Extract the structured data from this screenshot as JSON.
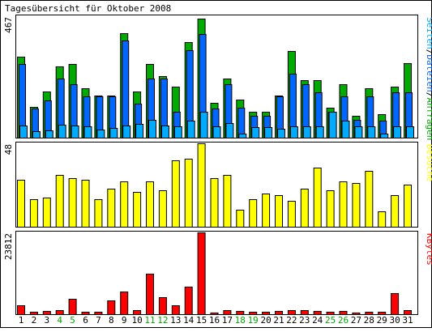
{
  "title": "Tagesübersicht für Oktober 2008",
  "colors": {
    "background": "#ffffff",
    "panel_border": "#000000",
    "hits": "#00aa00",
    "files": "#0066ff",
    "pages": "#00aaff",
    "visits": "#ffff00",
    "kbytes": "#ff0000",
    "weekday_label": "#000000",
    "weekend_label": "#00aa00"
  },
  "chart_data": [
    {
      "type": "bar",
      "panel": "requests",
      "ymax_label": "467",
      "ylim": [
        0,
        467
      ],
      "legend": [
        {
          "text": "Seiten",
          "color": "#00aaff"
        },
        {
          "text": "/",
          "color": "#000000"
        },
        {
          "text": "Dateien",
          "color": "#0066ff"
        },
        {
          "text": "/",
          "color": "#000000"
        },
        {
          "text": "Anfragen",
          "color": "#00aa00"
        }
      ],
      "categories": [
        "1",
        "2",
        "3",
        "4",
        "5",
        "6",
        "7",
        "8",
        "9",
        "10",
        "11",
        "12",
        "13",
        "14",
        "15",
        "16",
        "17",
        "18",
        "19",
        "20",
        "21",
        "22",
        "23",
        "24",
        "25",
        "26",
        "27",
        "28",
        "29",
        "30",
        "31"
      ],
      "series": [
        {
          "name": "Anfragen",
          "color": "#00aa00",
          "values": [
            311,
            117,
            177,
            273,
            282,
            189,
            163,
            163,
            402,
            177,
            282,
            237,
            195,
            367,
            458,
            135,
            228,
            145,
            100,
            100,
            163,
            332,
            220,
            222,
            115,
            205,
            85,
            190,
            90,
            195,
            285
          ]
        },
        {
          "name": "Dateien",
          "color": "#0066ff",
          "values": [
            283,
            112,
            142,
            228,
            205,
            159,
            159,
            159,
            375,
            132,
            228,
            228,
            101,
            337,
            397,
            112,
            205,
            115,
            83,
            83,
            159,
            245,
            205,
            175,
            99,
            159,
            70,
            159,
            64,
            175,
            175
          ]
        },
        {
          "name": "Seiten",
          "color": "#00aaff",
          "values": [
            48,
            25,
            29,
            49,
            46,
            44,
            30,
            37,
            48,
            52,
            69,
            48,
            43,
            64,
            99,
            43,
            57,
            15,
            40,
            40,
            35,
            45,
            45,
            44,
            101,
            65,
            43,
            44,
            15,
            45,
            45
          ]
        }
      ]
    },
    {
      "type": "bar",
      "panel": "visits",
      "ymax_label": "48",
      "ylim": [
        0,
        48
      ],
      "legend": [
        {
          "text": "Besuche",
          "color": "#ffff00"
        }
      ],
      "categories": [
        "1",
        "2",
        "3",
        "4",
        "5",
        "6",
        "7",
        "8",
        "9",
        "10",
        "11",
        "12",
        "13",
        "14",
        "15",
        "16",
        "17",
        "18",
        "19",
        "20",
        "21",
        "22",
        "23",
        "24",
        "25",
        "26",
        "27",
        "28",
        "29",
        "30",
        "31"
      ],
      "series": [
        {
          "name": "Besuche",
          "color": "#ffff00",
          "values": [
            27,
            16,
            17,
            30,
            28,
            27,
            16,
            22,
            26,
            20,
            26,
            21,
            38,
            39,
            48,
            28,
            30,
            10,
            16,
            19,
            18,
            15,
            22,
            34,
            21,
            26,
            25,
            32,
            9,
            18,
            24
          ]
        }
      ]
    },
    {
      "type": "bar",
      "panel": "kbytes",
      "ymax_label": "23812",
      "ylim": [
        0,
        23812
      ],
      "legend": [
        {
          "text": "KBytes",
          "color": "#ff0000"
        }
      ],
      "categories": [
        "1",
        "2",
        "3",
        "4",
        "5",
        "6",
        "7",
        "8",
        "9",
        "10",
        "11",
        "12",
        "13",
        "14",
        "15",
        "16",
        "17",
        "18",
        "19",
        "20",
        "21",
        "22",
        "23",
        "24",
        "25",
        "26",
        "27",
        "28",
        "29",
        "30",
        "31"
      ],
      "series": [
        {
          "name": "KBytes",
          "color": "#ff0000",
          "values": [
            2480,
            650,
            860,
            1080,
            4490,
            650,
            650,
            4000,
            6540,
            1080,
            11700,
            5050,
            2670,
            7950,
            23812,
            430,
            1080,
            860,
            650,
            650,
            860,
            1080,
            1080,
            860,
            650,
            860,
            430,
            650,
            650,
            6200,
            1080
          ]
        }
      ]
    }
  ],
  "x_labels": [
    {
      "text": "1",
      "weekend": false
    },
    {
      "text": "2",
      "weekend": false
    },
    {
      "text": "3",
      "weekend": false
    },
    {
      "text": "4",
      "weekend": true
    },
    {
      "text": "5",
      "weekend": true
    },
    {
      "text": "6",
      "weekend": false
    },
    {
      "text": "7",
      "weekend": false
    },
    {
      "text": "8",
      "weekend": false
    },
    {
      "text": "9",
      "weekend": false
    },
    {
      "text": "10",
      "weekend": false
    },
    {
      "text": "11",
      "weekend": true
    },
    {
      "text": "12",
      "weekend": true
    },
    {
      "text": "13",
      "weekend": false
    },
    {
      "text": "14",
      "weekend": false
    },
    {
      "text": "15",
      "weekend": false
    },
    {
      "text": "16",
      "weekend": false
    },
    {
      "text": "17",
      "weekend": false
    },
    {
      "text": "18",
      "weekend": true
    },
    {
      "text": "19",
      "weekend": true
    },
    {
      "text": "20",
      "weekend": false
    },
    {
      "text": "21",
      "weekend": false
    },
    {
      "text": "22",
      "weekend": false
    },
    {
      "text": "23",
      "weekend": false
    },
    {
      "text": "24",
      "weekend": false
    },
    {
      "text": "25",
      "weekend": true
    },
    {
      "text": "26",
      "weekend": true
    },
    {
      "text": "27",
      "weekend": false
    },
    {
      "text": "28",
      "weekend": false
    },
    {
      "text": "29",
      "weekend": false
    },
    {
      "text": "30",
      "weekend": false
    },
    {
      "text": "31",
      "weekend": false
    }
  ]
}
